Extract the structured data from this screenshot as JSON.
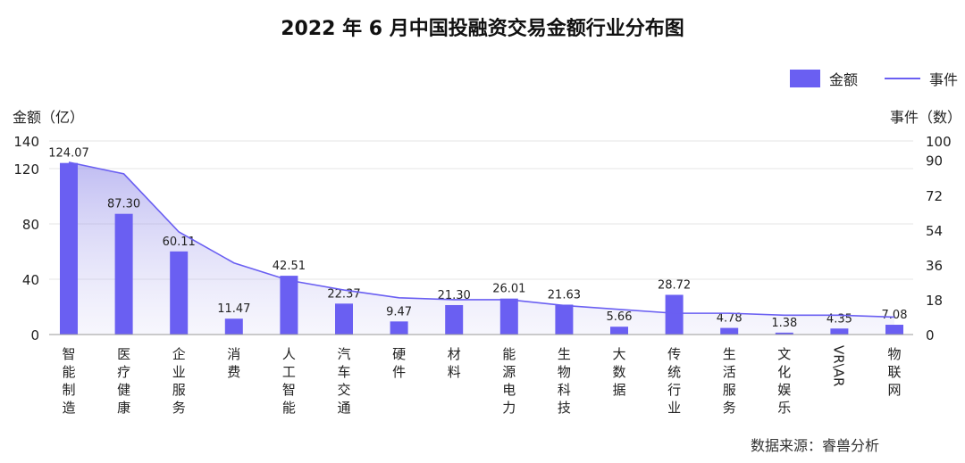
{
  "chart_data": {
    "type": "bar",
    "title": "2022 年 6 月中国投融资交易金额行业分布图",
    "ylabel_left": "金额（亿）",
    "ylabel_right": "事件（数）",
    "source": "数据来源：睿兽分析",
    "categories": [
      "智能制造",
      "医疗健康",
      "企业服务",
      "消费",
      "人工智能",
      "汽车交通",
      "硬件",
      "材料",
      "能源电力",
      "生物科技",
      "大数据",
      "传统行业",
      "生活服务",
      "文化娱乐",
      "VR\\AR",
      "物联网"
    ],
    "ylim_left": [
      0,
      140
    ],
    "yticks_left": [
      "0",
      "40",
      "80",
      "120",
      "140"
    ],
    "ylim_right": [
      0,
      100
    ],
    "yticks_right": [
      "0",
      "18",
      "36",
      "54",
      "72",
      "90",
      "100"
    ],
    "series": [
      {
        "name": "金额",
        "kind": "bar",
        "axis": "left",
        "color": "#6A5FF2",
        "values": [
          124.07,
          87.3,
          60.11,
          11.47,
          42.51,
          22.37,
          9.47,
          21.3,
          26.01,
          21.63,
          5.66,
          28.72,
          4.78,
          1.38,
          4.35,
          7.08
        ],
        "labels": [
          "124.07",
          "87.30",
          "60.11",
          "11.47",
          "42.51",
          "22.37",
          "9.47",
          "21.30",
          "26.01",
          "21.63",
          "5.66",
          "28.72",
          "4.78",
          "1.38",
          "4.35",
          "7.08"
        ]
      },
      {
        "name": "事件",
        "kind": "area-line",
        "axis": "right",
        "color": "#6A5FF2",
        "values": [
          89,
          83,
          53,
          37,
          28,
          23,
          19,
          18,
          18,
          15,
          13,
          11,
          11,
          10,
          10,
          9
        ]
      }
    ],
    "legend_position": "top-right",
    "grid": true
  }
}
